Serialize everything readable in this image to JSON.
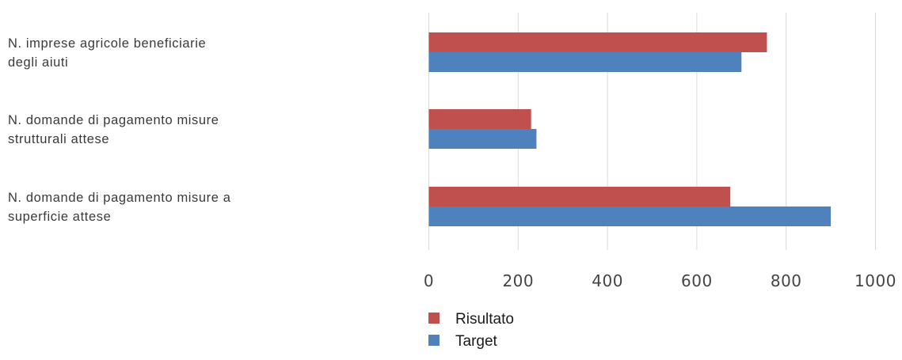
{
  "chart_data": {
    "type": "bar",
    "orientation": "horizontal",
    "categories": [
      [
        "N. imprese agricole beneficiarie",
        "degli aiuti"
      ],
      [
        "N. domande di pagamento misure",
        "strutturali attese"
      ],
      [
        "N. domande di pagamento misure a",
        "superficie attese"
      ]
    ],
    "series": [
      {
        "name": "Risultato",
        "color": "#c0504d",
        "values": [
          757,
          229,
          675
        ]
      },
      {
        "name": "Target",
        "color": "#4f81bd",
        "values": [
          700,
          241,
          900
        ]
      }
    ],
    "xlim": [
      0,
      1000
    ],
    "xticks": [
      0,
      200,
      400,
      600,
      800,
      1000
    ],
    "grid": true,
    "legend": "bottom",
    "title": "",
    "xlabel": "",
    "ylabel": ""
  }
}
